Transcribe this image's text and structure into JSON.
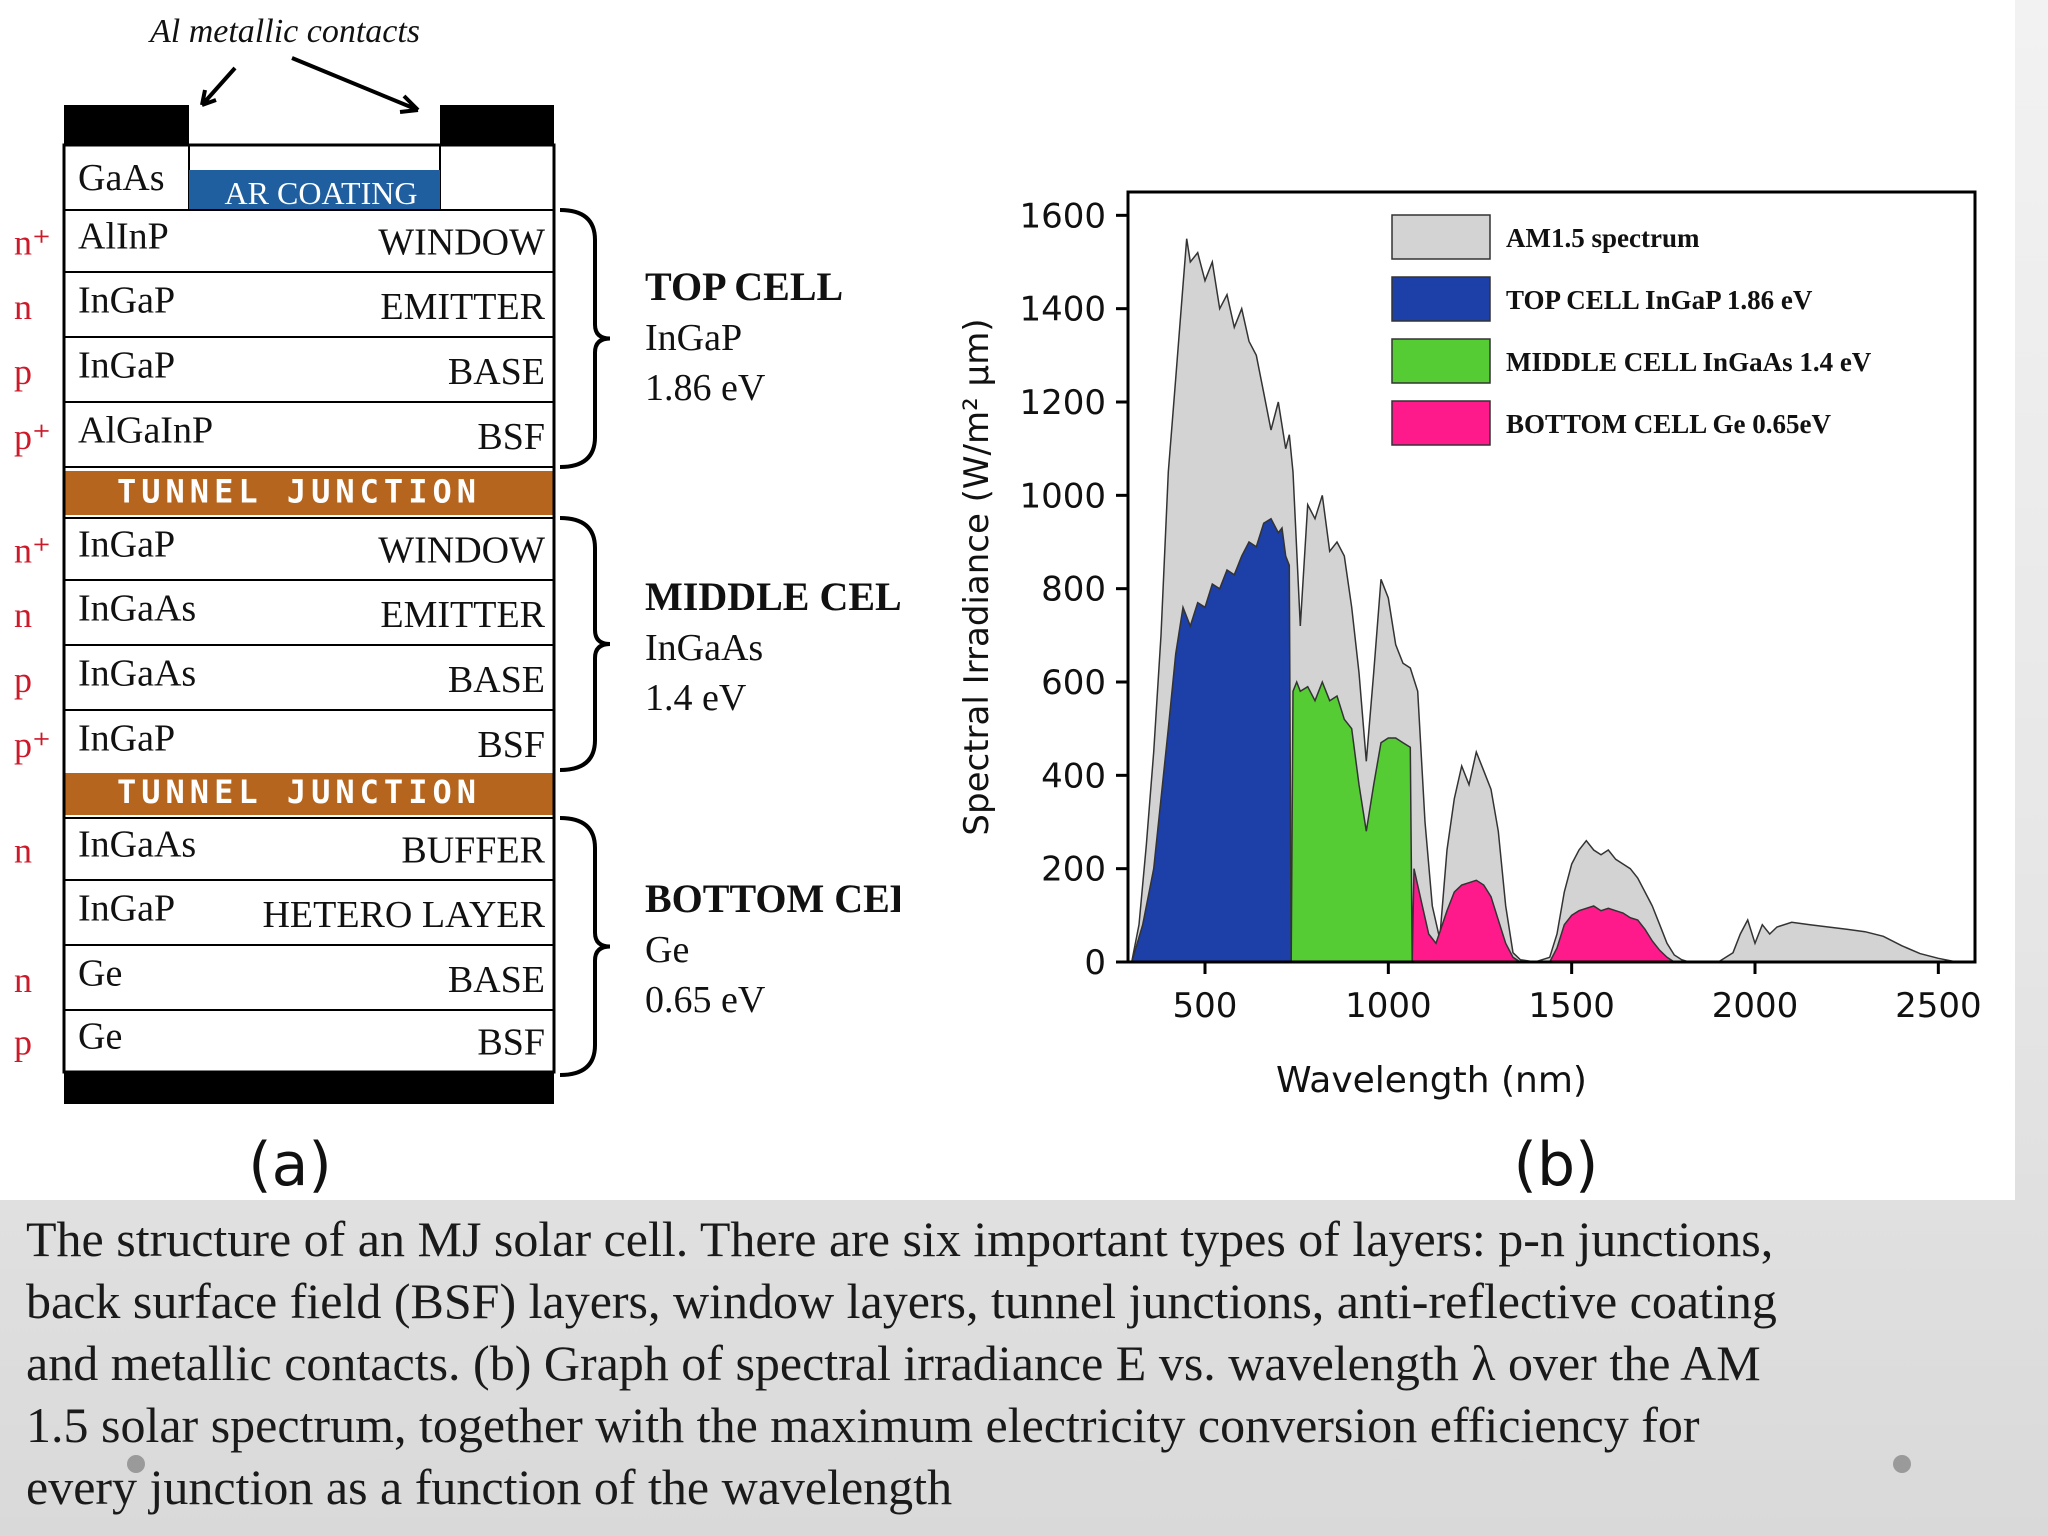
{
  "figure_a": {
    "label": "(a)",
    "contacts_label": "Al metallic contacts",
    "ar_coating": "AR COATING",
    "gaas": "GaAs",
    "layers": [
      {
        "doping": "n⁺",
        "material": "AlInP",
        "role": "WINDOW",
        "type": "layer"
      },
      {
        "doping": "n",
        "material": "InGaP",
        "role": "EMITTER",
        "type": "layer"
      },
      {
        "doping": "p",
        "material": "InGaP",
        "role": "BASE",
        "type": "layer"
      },
      {
        "doping": "p⁺",
        "material": "AlGaInP",
        "role": "BSF",
        "type": "layer"
      },
      {
        "type": "tunnel",
        "role": "TUNNEL JUNCTION"
      },
      {
        "doping": "n⁺",
        "material": "InGaP",
        "role": "WINDOW",
        "type": "layer"
      },
      {
        "doping": "n",
        "material": "InGaAs",
        "role": "EMITTER",
        "type": "layer"
      },
      {
        "doping": "p",
        "material": "InGaAs",
        "role": "BASE",
        "type": "layer"
      },
      {
        "doping": "p⁺",
        "material": "InGaP",
        "role": "BSF",
        "type": "layer"
      },
      {
        "type": "tunnel",
        "role": "TUNNEL JUNCTION"
      },
      {
        "doping": "n",
        "material": "InGaAs",
        "role": "BUFFER",
        "type": "layer"
      },
      {
        "doping": "",
        "material": "InGaP",
        "role": "HETERO LAYER",
        "type": "layer"
      },
      {
        "doping": "n",
        "material": "Ge",
        "role": "BASE",
        "type": "layer"
      },
      {
        "doping": "p",
        "material": "Ge",
        "role": "BSF",
        "type": "layer"
      }
    ],
    "cells": [
      {
        "name": "TOP CELL",
        "material": "InGaP",
        "bandgap": "1.86 eV"
      },
      {
        "name": "MIDDLE CELL",
        "material": "InGaAs",
        "bandgap": "1.4 eV"
      },
      {
        "name": "BOTTOM CELL",
        "material": "Ge",
        "bandgap": "0.65 eV"
      }
    ],
    "colors": {
      "tunnel": "#b5651d",
      "ar_coating": "#1f5fa0",
      "doping_text": "#cc1a2a",
      "contact": "#000000"
    }
  },
  "chart_data": {
    "type": "area",
    "label": "(b)",
    "xlabel": "Wavelength (nm)",
    "ylabel": "Spectral Irradiance (W/m² μm)",
    "xlim": [
      290,
      2600
    ],
    "ylim": [
      0,
      1650
    ],
    "xticks": [
      500,
      1000,
      1500,
      2000,
      2500
    ],
    "yticks": [
      0,
      200,
      400,
      600,
      800,
      1000,
      1200,
      1400,
      1600
    ],
    "legend_position": "top-right",
    "series": [
      {
        "name": "AM1.5 spectrum",
        "color": "#d3d3d3",
        "points": [
          [
            300,
            0
          ],
          [
            320,
            80
          ],
          [
            340,
            250
          ],
          [
            360,
            450
          ],
          [
            380,
            700
          ],
          [
            400,
            1050
          ],
          [
            420,
            1250
          ],
          [
            440,
            1450
          ],
          [
            450,
            1550
          ],
          [
            460,
            1500
          ],
          [
            480,
            1520
          ],
          [
            500,
            1460
          ],
          [
            520,
            1500
          ],
          [
            540,
            1400
          ],
          [
            560,
            1430
          ],
          [
            580,
            1360
          ],
          [
            600,
            1400
          ],
          [
            620,
            1330
          ],
          [
            640,
            1300
          ],
          [
            660,
            1220
          ],
          [
            680,
            1140
          ],
          [
            700,
            1200
          ],
          [
            720,
            1100
          ],
          [
            730,
            1130
          ],
          [
            740,
            1050
          ],
          [
            760,
            720
          ],
          [
            780,
            980
          ],
          [
            800,
            950
          ],
          [
            820,
            1000
          ],
          [
            840,
            880
          ],
          [
            860,
            900
          ],
          [
            880,
            870
          ],
          [
            900,
            760
          ],
          [
            920,
            620
          ],
          [
            940,
            430
          ],
          [
            960,
            620
          ],
          [
            980,
            820
          ],
          [
            1000,
            780
          ],
          [
            1020,
            680
          ],
          [
            1040,
            640
          ],
          [
            1060,
            630
          ],
          [
            1080,
            580
          ],
          [
            1100,
            300
          ],
          [
            1120,
            120
          ],
          [
            1140,
            50
          ],
          [
            1160,
            240
          ],
          [
            1180,
            350
          ],
          [
            1200,
            420
          ],
          [
            1220,
            380
          ],
          [
            1240,
            450
          ],
          [
            1260,
            410
          ],
          [
            1280,
            370
          ],
          [
            1300,
            280
          ],
          [
            1320,
            120
          ],
          [
            1340,
            20
          ],
          [
            1360,
            5
          ],
          [
            1400,
            0
          ],
          [
            1440,
            10
          ],
          [
            1460,
            60
          ],
          [
            1480,
            150
          ],
          [
            1500,
            210
          ],
          [
            1520,
            240
          ],
          [
            1540,
            260
          ],
          [
            1560,
            240
          ],
          [
            1580,
            230
          ],
          [
            1600,
            240
          ],
          [
            1620,
            220
          ],
          [
            1640,
            210
          ],
          [
            1660,
            200
          ],
          [
            1680,
            180
          ],
          [
            1700,
            150
          ],
          [
            1720,
            120
          ],
          [
            1740,
            80
          ],
          [
            1760,
            40
          ],
          [
            1780,
            15
          ],
          [
            1800,
            5
          ],
          [
            1820,
            0
          ],
          [
            1900,
            0
          ],
          [
            1940,
            20
          ],
          [
            1960,
            60
          ],
          [
            1980,
            90
          ],
          [
            2000,
            40
          ],
          [
            2020,
            80
          ],
          [
            2040,
            60
          ],
          [
            2060,
            75
          ],
          [
            2100,
            85
          ],
          [
            2150,
            80
          ],
          [
            2200,
            75
          ],
          [
            2250,
            70
          ],
          [
            2300,
            65
          ],
          [
            2350,
            55
          ],
          [
            2400,
            35
          ],
          [
            2450,
            18
          ],
          [
            2500,
            8
          ],
          [
            2550,
            0
          ]
        ]
      },
      {
        "name": "TOP CELL InGaP 1.86 eV",
        "color": "#1c3fa8",
        "points": [
          [
            300,
            0
          ],
          [
            330,
            80
          ],
          [
            360,
            200
          ],
          [
            380,
            350
          ],
          [
            400,
            500
          ],
          [
            420,
            660
          ],
          [
            440,
            760
          ],
          [
            460,
            720
          ],
          [
            480,
            770
          ],
          [
            500,
            760
          ],
          [
            520,
            810
          ],
          [
            540,
            800
          ],
          [
            560,
            840
          ],
          [
            580,
            830
          ],
          [
            600,
            870
          ],
          [
            620,
            900
          ],
          [
            640,
            890
          ],
          [
            660,
            940
          ],
          [
            680,
            950
          ],
          [
            700,
            920
          ],
          [
            710,
            930
          ],
          [
            720,
            870
          ],
          [
            730,
            850
          ],
          [
            735,
            0
          ]
        ]
      },
      {
        "name": "MIDDLE CELL InGaAs 1.4 eV",
        "color": "#55cc33",
        "points": [
          [
            735,
            0
          ],
          [
            740,
            580
          ],
          [
            750,
            600
          ],
          [
            760,
            580
          ],
          [
            780,
            590
          ],
          [
            800,
            560
          ],
          [
            820,
            600
          ],
          [
            840,
            560
          ],
          [
            860,
            570
          ],
          [
            880,
            520
          ],
          [
            900,
            500
          ],
          [
            920,
            380
          ],
          [
            940,
            280
          ],
          [
            960,
            380
          ],
          [
            980,
            470
          ],
          [
            1000,
            480
          ],
          [
            1020,
            480
          ],
          [
            1040,
            470
          ],
          [
            1060,
            460
          ],
          [
            1065,
            0
          ]
        ]
      },
      {
        "name": "BOTTOM CELL Ge 0.65eV",
        "color": "#ff1a8c",
        "points": [
          [
            1065,
            0
          ],
          [
            1070,
            200
          ],
          [
            1090,
            130
          ],
          [
            1110,
            60
          ],
          [
            1130,
            40
          ],
          [
            1160,
            110
          ],
          [
            1180,
            150
          ],
          [
            1200,
            165
          ],
          [
            1220,
            170
          ],
          [
            1240,
            175
          ],
          [
            1260,
            165
          ],
          [
            1280,
            140
          ],
          [
            1300,
            90
          ],
          [
            1320,
            40
          ],
          [
            1340,
            10
          ],
          [
            1360,
            0
          ],
          [
            1440,
            0
          ],
          [
            1460,
            30
          ],
          [
            1480,
            80
          ],
          [
            1500,
            100
          ],
          [
            1520,
            110
          ],
          [
            1540,
            115
          ],
          [
            1560,
            120
          ],
          [
            1580,
            110
          ],
          [
            1600,
            115
          ],
          [
            1620,
            110
          ],
          [
            1640,
            105
          ],
          [
            1660,
            95
          ],
          [
            1680,
            90
          ],
          [
            1700,
            70
          ],
          [
            1720,
            45
          ],
          [
            1740,
            25
          ],
          [
            1760,
            10
          ],
          [
            1780,
            0
          ]
        ]
      }
    ]
  },
  "caption": [
    "The structure of an MJ solar cell. There are six important types of layers: p-n junctions,",
    "back surface field (BSF) layers, window layers, tunnel junctions, anti-reflective coating",
    "and metallic contacts. (b) Graph of spectral irradiance E vs. wavelength λ over the AM",
    "1.5 solar spectrum, together with the maximum electricity conversion efficiency for",
    "every junction as a function of the wavelength"
  ]
}
